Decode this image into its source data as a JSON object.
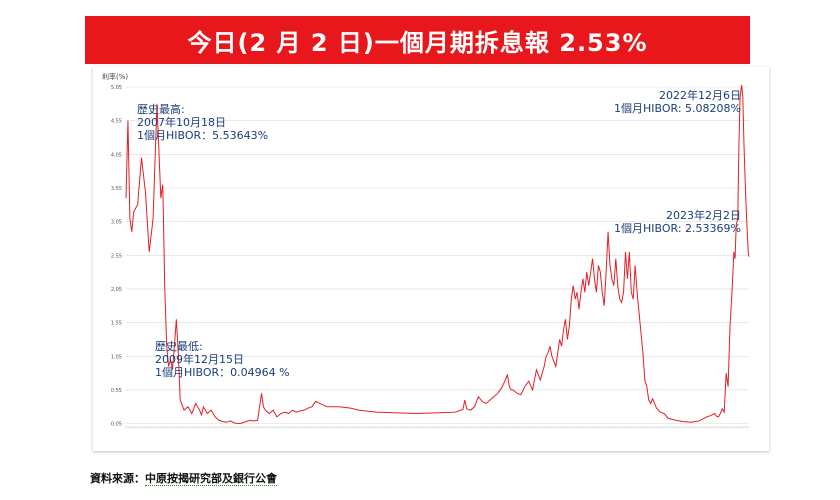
{
  "title": "今日(2 月 2 日)一個月期拆息報 2.53%",
  "source": {
    "prefix": "資料來源：",
    "text": "中原按揭研究部及銀行公會"
  },
  "colors": {
    "title_bg": "#e8171c",
    "line": "#e21f26",
    "grid": "#d9d9d9",
    "annotation": "#1a3d7a"
  },
  "annotations": {
    "high": {
      "line1": "歷史最高:",
      "line2": "2007年10月18日",
      "line3": "1個月HIBOR：5.53643%"
    },
    "low": {
      "line1": "歷史最低:",
      "line2": "2009年12月15日",
      "line3": "1個月HIBOR：0.04964 %"
    },
    "peak2022": {
      "line1": "2022年12月6日",
      "line2": "1個月HIBOR: 5.08208%"
    },
    "today": {
      "line1": "2023年2月2日",
      "line2": "1個月HIBOR: 2.53369%"
    }
  },
  "chart_data": {
    "type": "line",
    "title": "",
    "xlabel": "",
    "ylabel": "利率(%)",
    "ylim": [
      0,
      5.05
    ],
    "yticks": [
      "0.05",
      "0.55",
      "1.05",
      "1.55",
      "2.05",
      "2.55",
      "3.05",
      "3.55",
      "4.05",
      "4.55",
      "5.05"
    ],
    "grid": true,
    "legend": "none",
    "series": [
      {
        "values": [
          [
            2007.0,
            3.4
          ],
          [
            2007.05,
            4.55
          ],
          [
            2007.1,
            3.1
          ],
          [
            2007.15,
            2.9
          ],
          [
            2007.2,
            3.2
          ],
          [
            2007.3,
            3.3
          ],
          [
            2007.4,
            4.0
          ],
          [
            2007.5,
            3.5
          ],
          [
            2007.6,
            2.6
          ],
          [
            2007.7,
            3.1
          ],
          [
            2007.8,
            4.8
          ],
          [
            2007.9,
            3.4
          ],
          [
            2007.95,
            3.6
          ],
          [
            2008.0,
            2.1
          ],
          [
            2008.05,
            1.2
          ],
          [
            2008.1,
            0.9
          ],
          [
            2008.15,
            1.0
          ],
          [
            2008.2,
            0.85
          ],
          [
            2008.25,
            1.2
          ],
          [
            2008.3,
            1.6
          ],
          [
            2008.35,
            1.1
          ],
          [
            2008.4,
            0.4
          ],
          [
            2008.5,
            0.25
          ],
          [
            2008.6,
            0.3
          ],
          [
            2008.7,
            0.2
          ],
          [
            2008.8,
            0.35
          ],
          [
            2008.9,
            0.25
          ],
          [
            2008.95,
            0.18
          ],
          [
            2009.0,
            0.3
          ],
          [
            2009.1,
            0.2
          ],
          [
            2009.2,
            0.25
          ],
          [
            2009.3,
            0.15
          ],
          [
            2009.4,
            0.1
          ],
          [
            2009.5,
            0.08
          ],
          [
            2009.6,
            0.07
          ],
          [
            2009.7,
            0.09
          ],
          [
            2009.8,
            0.06
          ],
          [
            2009.95,
            0.05
          ],
          [
            2010.0,
            0.06
          ],
          [
            2010.1,
            0.08
          ],
          [
            2010.2,
            0.1
          ],
          [
            2010.3,
            0.09
          ],
          [
            2010.4,
            0.1
          ],
          [
            2010.45,
            0.3
          ],
          [
            2010.5,
            0.5
          ],
          [
            2010.55,
            0.3
          ],
          [
            2010.6,
            0.25
          ],
          [
            2010.7,
            0.2
          ],
          [
            2010.8,
            0.25
          ],
          [
            2010.9,
            0.15
          ],
          [
            2011.0,
            0.2
          ],
          [
            2011.1,
            0.22
          ],
          [
            2011.2,
            0.2
          ],
          [
            2011.3,
            0.25
          ],
          [
            2011.4,
            0.22
          ],
          [
            2011.5,
            0.24
          ],
          [
            2011.6,
            0.25
          ],
          [
            2011.7,
            0.28
          ],
          [
            2011.8,
            0.3
          ],
          [
            2011.9,
            0.38
          ],
          [
            2012.0,
            0.35
          ],
          [
            2012.2,
            0.3
          ],
          [
            2012.5,
            0.3
          ],
          [
            2012.8,
            0.28
          ],
          [
            2013.0,
            0.25
          ],
          [
            2013.5,
            0.22
          ],
          [
            2014.0,
            0.21
          ],
          [
            2014.5,
            0.2
          ],
          [
            2015.0,
            0.21
          ],
          [
            2015.5,
            0.22
          ],
          [
            2015.7,
            0.26
          ],
          [
            2015.75,
            0.4
          ],
          [
            2015.8,
            0.27
          ],
          [
            2015.9,
            0.25
          ],
          [
            2016.0,
            0.3
          ],
          [
            2016.1,
            0.45
          ],
          [
            2016.2,
            0.38
          ],
          [
            2016.3,
            0.35
          ],
          [
            2016.4,
            0.4
          ],
          [
            2016.5,
            0.45
          ],
          [
            2016.6,
            0.5
          ],
          [
            2016.7,
            0.58
          ],
          [
            2016.8,
            0.7
          ],
          [
            2016.85,
            0.78
          ],
          [
            2016.9,
            0.6
          ],
          [
            2016.95,
            0.55
          ],
          [
            2017.0,
            0.55
          ],
          [
            2017.1,
            0.5
          ],
          [
            2017.2,
            0.48
          ],
          [
            2017.3,
            0.6
          ],
          [
            2017.4,
            0.68
          ],
          [
            2017.5,
            0.55
          ],
          [
            2017.6,
            0.85
          ],
          [
            2017.7,
            0.7
          ],
          [
            2017.8,
            0.9
          ],
          [
            2017.85,
            1.05
          ],
          [
            2017.9,
            1.1
          ],
          [
            2017.95,
            1.2
          ],
          [
            2018.0,
            1.05
          ],
          [
            2018.1,
            0.9
          ],
          [
            2018.15,
            1.1
          ],
          [
            2018.2,
            1.3
          ],
          [
            2018.25,
            1.2
          ],
          [
            2018.3,
            1.45
          ],
          [
            2018.35,
            1.6
          ],
          [
            2018.4,
            1.3
          ],
          [
            2018.45,
            1.5
          ],
          [
            2018.5,
            1.9
          ],
          [
            2018.55,
            2.1
          ],
          [
            2018.6,
            1.9
          ],
          [
            2018.65,
            2.0
          ],
          [
            2018.7,
            1.75
          ],
          [
            2018.75,
            2.0
          ],
          [
            2018.8,
            2.2
          ],
          [
            2018.85,
            2.0
          ],
          [
            2018.9,
            2.3
          ],
          [
            2018.95,
            2.1
          ],
          [
            2019.0,
            2.3
          ],
          [
            2019.05,
            2.5
          ],
          [
            2019.1,
            2.2
          ],
          [
            2019.15,
            2.0
          ],
          [
            2019.2,
            2.4
          ],
          [
            2019.25,
            2.3
          ],
          [
            2019.3,
            2.0
          ],
          [
            2019.35,
            1.8
          ],
          [
            2019.4,
            2.3
          ],
          [
            2019.45,
            2.9
          ],
          [
            2019.5,
            2.4
          ],
          [
            2019.55,
            2.2
          ],
          [
            2019.6,
            2.1
          ],
          [
            2019.65,
            2.5
          ],
          [
            2019.7,
            2.1
          ],
          [
            2019.75,
            1.9
          ],
          [
            2019.8,
            1.85
          ],
          [
            2019.85,
            2.0
          ],
          [
            2019.9,
            2.6
          ],
          [
            2019.95,
            2.2
          ],
          [
            2020.0,
            2.6
          ],
          [
            2020.05,
            2.0
          ],
          [
            2020.1,
            1.9
          ],
          [
            2020.15,
            2.4
          ],
          [
            2020.2,
            2.0
          ],
          [
            2020.25,
            1.7
          ],
          [
            2020.3,
            1.4
          ],
          [
            2020.35,
            1.1
          ],
          [
            2020.4,
            0.7
          ],
          [
            2020.45,
            0.6
          ],
          [
            2020.5,
            0.4
          ],
          [
            2020.55,
            0.35
          ],
          [
            2020.6,
            0.42
          ],
          [
            2020.7,
            0.28
          ],
          [
            2020.8,
            0.22
          ],
          [
            2020.9,
            0.2
          ],
          [
            2021.0,
            0.13
          ],
          [
            2021.2,
            0.1
          ],
          [
            2021.4,
            0.08
          ],
          [
            2021.6,
            0.07
          ],
          [
            2021.8,
            0.09
          ],
          [
            2021.9,
            0.12
          ],
          [
            2022.0,
            0.15
          ],
          [
            2022.1,
            0.17
          ],
          [
            2022.2,
            0.2
          ],
          [
            2022.25,
            0.16
          ],
          [
            2022.3,
            0.15
          ],
          [
            2022.35,
            0.2
          ],
          [
            2022.4,
            0.27
          ],
          [
            2022.45,
            0.22
          ],
          [
            2022.5,
            0.8
          ],
          [
            2022.55,
            0.6
          ],
          [
            2022.6,
            1.5
          ],
          [
            2022.65,
            2.0
          ],
          [
            2022.7,
            2.6
          ],
          [
            2022.73,
            2.5
          ],
          [
            2022.76,
            3.0
          ],
          [
            2022.8,
            3.1
          ],
          [
            2022.83,
            4.2
          ],
          [
            2022.86,
            4.9
          ],
          [
            2022.9,
            5.08
          ],
          [
            2022.93,
            4.9
          ],
          [
            2022.96,
            4.2
          ],
          [
            2023.0,
            3.5
          ],
          [
            2023.04,
            2.95
          ],
          [
            2023.07,
            2.6
          ],
          [
            2023.09,
            2.53
          ]
        ]
      }
    ]
  }
}
